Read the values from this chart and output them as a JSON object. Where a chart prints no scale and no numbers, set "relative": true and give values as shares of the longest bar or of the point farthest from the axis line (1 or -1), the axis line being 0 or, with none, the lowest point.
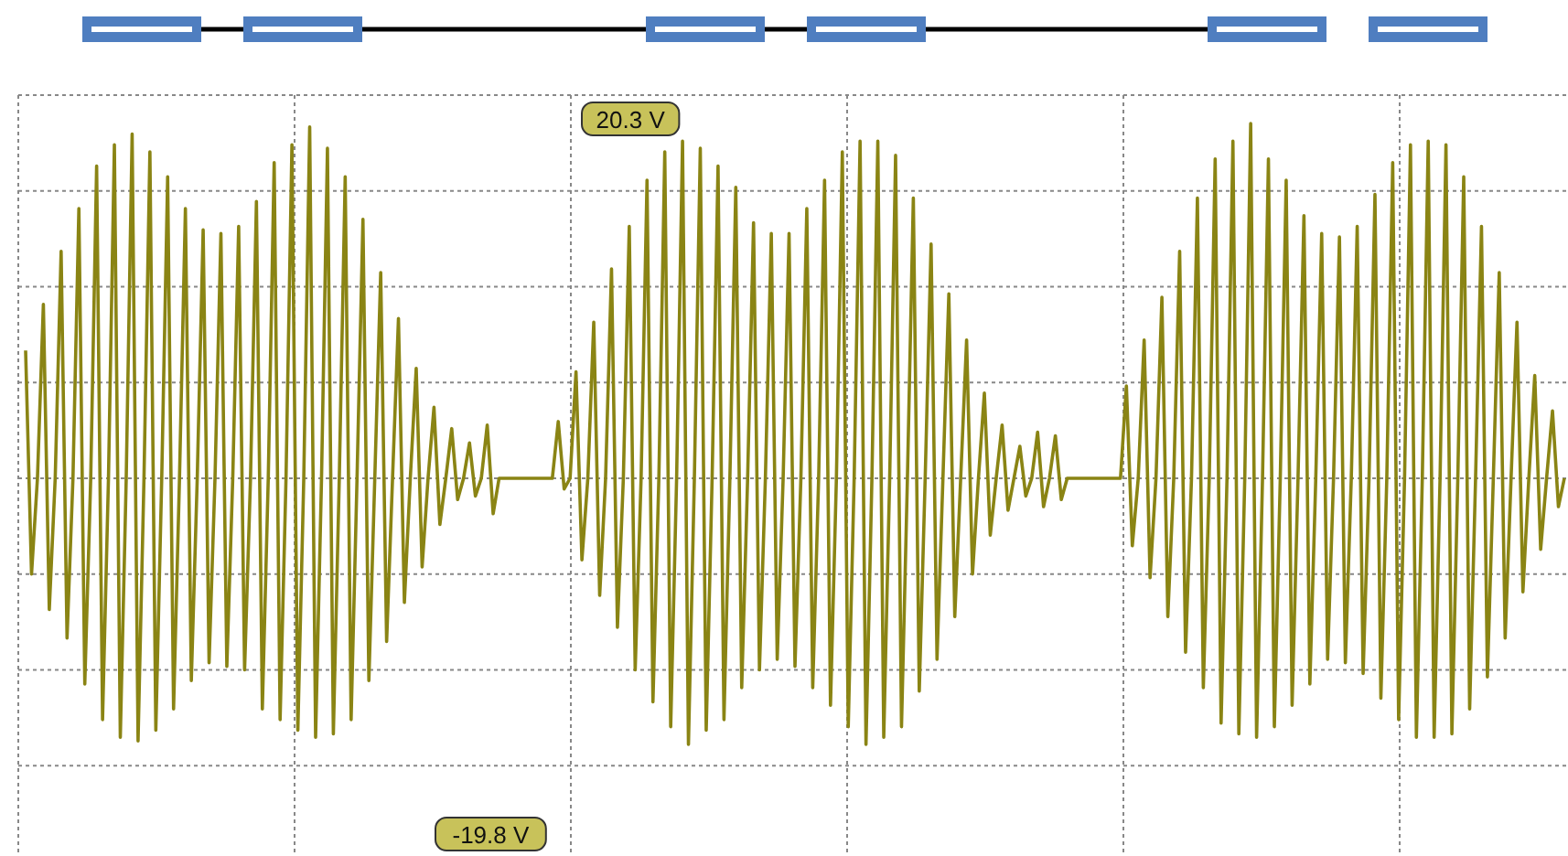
{
  "chart_data": {
    "type": "line",
    "relative": true,
    "grid": true,
    "categories": [
      null,
      null,
      null,
      null,
      null,
      null,
      null,
      null,
      null,
      null,
      null,
      null,
      null,
      null,
      null,
      null,
      null,
      null,
      null,
      null,
      null,
      null,
      null,
      null,
      null,
      null,
      null,
      null,
      null,
      null,
      null,
      null,
      null,
      null,
      null,
      null,
      null,
      null,
      null,
      null,
      null,
      null,
      null,
      null,
      null,
      null,
      null,
      null,
      null,
      null,
      null,
      null,
      null,
      null,
      null,
      null,
      null,
      null,
      null,
      null,
      null,
      null,
      null,
      null,
      null,
      null,
      null,
      null,
      null,
      null,
      null,
      null,
      null,
      null,
      null,
      null,
      null,
      null,
      null,
      null,
      null,
      null,
      null,
      null,
      null,
      null,
      null,
      null,
      null,
      null,
      null,
      null,
      null,
      null,
      null,
      null,
      null,
      null,
      null,
      null,
      null,
      null,
      null,
      null,
      null,
      null,
      null,
      null,
      null,
      null,
      null,
      null,
      null,
      null,
      null,
      null,
      null,
      null,
      null,
      null,
      null,
      null,
      null,
      null,
      null,
      null,
      null,
      null,
      null,
      null,
      null,
      null,
      null,
      null,
      null,
      null,
      null,
      null,
      null,
      null,
      null,
      null,
      null,
      null,
      null,
      null,
      null,
      null,
      null,
      null,
      null,
      null,
      null,
      null,
      null,
      null,
      null,
      null,
      null,
      null,
      null,
      null,
      null,
      null,
      null,
      null,
      null,
      null,
      null,
      null,
      null,
      null,
      null,
      null,
      null,
      null,
      null,
      null,
      null,
      null,
      null,
      null,
      null,
      null,
      null,
      null,
      null,
      null,
      null,
      null,
      null,
      null,
      null,
      null,
      null,
      null,
      null,
      null,
      null,
      null,
      null,
      null,
      null,
      null,
      null,
      null,
      null,
      null,
      null,
      null,
      null,
      null,
      null,
      null,
      null,
      null,
      null,
      null,
      null,
      null,
      null,
      null,
      null,
      null,
      null,
      null,
      null,
      null,
      null,
      null,
      null,
      null,
      null,
      null,
      null,
      null,
      null,
      null,
      null,
      null,
      null,
      null,
      null,
      null,
      null,
      null,
      null,
      null,
      null,
      null,
      null,
      null,
      null,
      null,
      null,
      null,
      null,
      null,
      null,
      null,
      null
    ],
    "series": [
      {
        "color": "#8a8414",
        "values": [
          0.36,
          -0.27,
          0,
          0.49,
          -0.37,
          0,
          0.64,
          -0.45,
          0,
          0.76,
          -0.58,
          0,
          0.88,
          -0.68,
          0,
          0.94,
          -0.73,
          0,
          0.97,
          -0.74,
          0,
          0.92,
          -0.71,
          0,
          0.85,
          -0.65,
          0,
          0.76,
          -0.57,
          0,
          0.7,
          -0.52,
          0,
          0.69,
          -0.53,
          0,
          0.71,
          -0.54,
          0,
          0.78,
          -0.65,
          0,
          0.89,
          -0.68,
          0,
          0.94,
          -0.71,
          0,
          0.99,
          -0.73,
          0,
          0.93,
          -0.72,
          0,
          0.85,
          -0.68,
          0,
          0.73,
          -0.57,
          0,
          0.58,
          -0.46,
          0,
          0.45,
          -0.35,
          0,
          0.31,
          -0.25,
          0,
          0.2,
          -0.13,
          0,
          0.14,
          -0.06,
          0,
          0.1,
          -0.05,
          0,
          0.15,
          -0.1,
          0,
          0,
          0,
          0,
          0,
          0,
          0,
          0,
          0,
          0,
          0.16,
          -0.03,
          0,
          0.3,
          -0.23,
          0,
          0.44,
          -0.33,
          0,
          0.59,
          -0.42,
          0,
          0.71,
          -0.54,
          0,
          0.84,
          -0.63,
          0,
          0.92,
          -0.7,
          0,
          0.95,
          -0.75,
          0,
          0.93,
          -0.71,
          0,
          0.88,
          -0.68,
          0,
          0.82,
          -0.59,
          0,
          0.72,
          -0.54,
          0,
          0.69,
          -0.51,
          0,
          0.69,
          -0.53,
          0,
          0.76,
          -0.59,
          0,
          0.84,
          -0.64,
          0,
          0.92,
          -0.7,
          0,
          0.95,
          -0.75,
          0,
          0.95,
          -0.73,
          0,
          0.91,
          -0.7,
          0,
          0.79,
          -0.6,
          0,
          0.66,
          -0.51,
          0,
          0.52,
          -0.39,
          0,
          0.39,
          -0.27,
          0,
          0.24,
          -0.16,
          0,
          0.15,
          -0.09,
          0,
          0.09,
          -0.05,
          0,
          0.13,
          -0.08,
          0,
          0.12,
          -0.06,
          0,
          0,
          0,
          0,
          0,
          0,
          0,
          0,
          0,
          0,
          0.26,
          -0.19,
          0,
          0.39,
          -0.28,
          0,
          0.51,
          -0.39,
          0,
          0.64,
          -0.49,
          0,
          0.79,
          -0.59,
          0,
          0.9,
          -0.69,
          0,
          0.95,
          -0.72,
          0,
          1,
          -0.73,
          0,
          0.9,
          -0.7,
          0,
          0.84,
          -0.64,
          0,
          0.74,
          -0.58,
          0,
          0.69,
          -0.51,
          0,
          0.68,
          -0.52,
          0,
          0.71,
          -0.55,
          0,
          0.8,
          -0.62,
          0,
          0.89,
          -0.68,
          0,
          0.94,
          -0.73,
          0,
          0.95,
          -0.73,
          0,
          0.94,
          -0.72,
          0,
          0.85,
          -0.65,
          0,
          0.71,
          -0.56,
          0,
          0.58,
          -0.45,
          0,
          0.44,
          -0.32,
          0,
          0.29,
          -0.2,
          0,
          0.19,
          -0.08,
          0
        ]
      }
    ],
    "annotations": [
      "20.3 V",
      "-19.8 V"
    ]
  }
}
